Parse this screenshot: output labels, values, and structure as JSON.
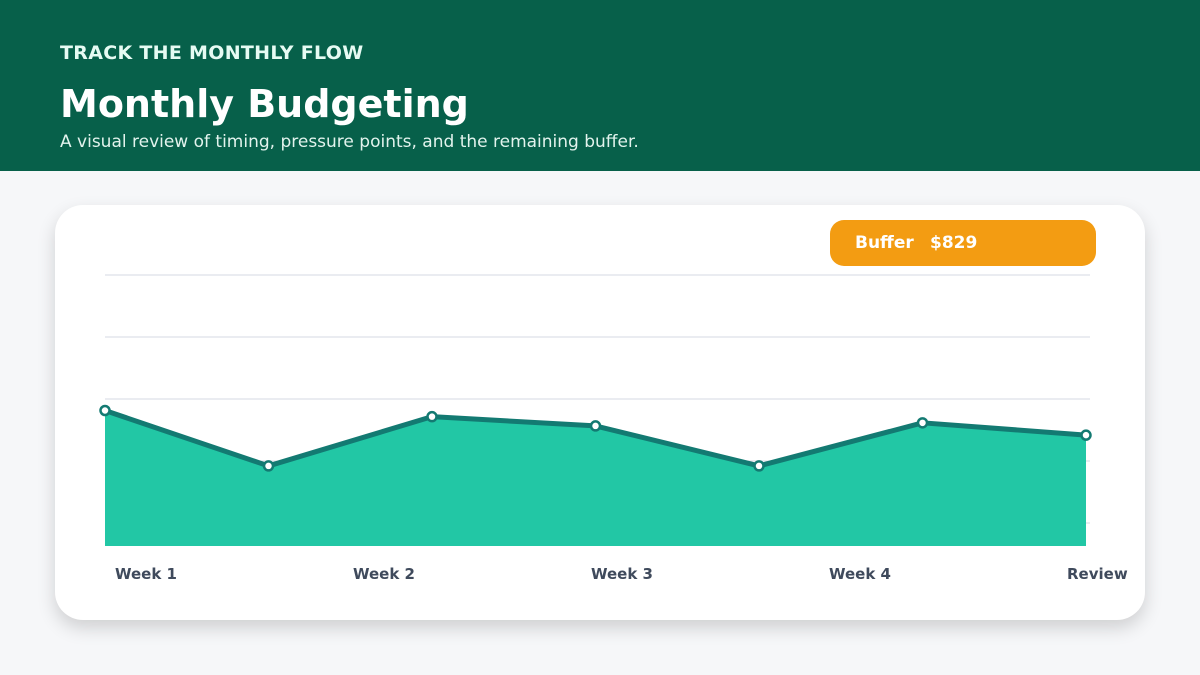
{
  "header": {
    "eyebrow": "TRACK THE MONTHLY FLOW",
    "title": "Monthly Budgeting",
    "subtitle": "A visual review of timing, pressure points, and the remaining buffer."
  },
  "badge": {
    "label": "Buffer",
    "value": "$829"
  },
  "colors": {
    "header_bg": "#07604a",
    "area_fill": "#22c7a5",
    "line": "#137a72",
    "badge": "#f39c12",
    "tick_text": "#3f4a5c"
  },
  "chart_data": {
    "type": "area",
    "title": "",
    "xlabel": "",
    "ylabel": "",
    "tick_labels": [
      "Week 1",
      "Week 2",
      "Week 3",
      "Week 4",
      "Review"
    ],
    "x": [
      0,
      1,
      2,
      3,
      4,
      5,
      6
    ],
    "values": [
      2.2,
      1.3,
      2.1,
      1.95,
      1.3,
      2.0,
      1.8
    ],
    "ylim": [
      0,
      4.4
    ],
    "grid": true,
    "legend": "none"
  }
}
